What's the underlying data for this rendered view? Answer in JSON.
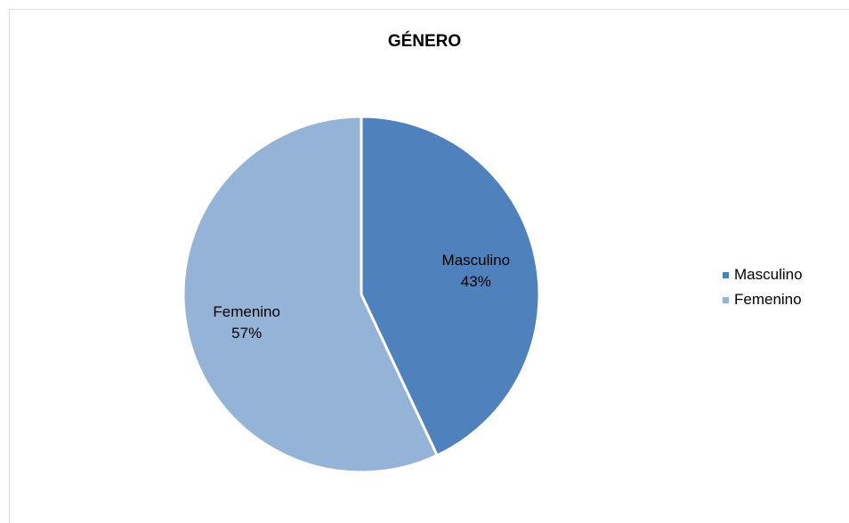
{
  "chart_data": {
    "type": "pie",
    "title": "GÉNERO",
    "categories": [
      "Masculino",
      "Femenino"
    ],
    "values": [
      43,
      57
    ],
    "value_unit": "%",
    "data_labels": [
      {
        "name": "Masculino",
        "value": "43%"
      },
      {
        "name": "Femenino",
        "value": "57%"
      }
    ],
    "colors": [
      "#4f81bd",
      "#95b3d7"
    ],
    "slice_border_color": "#ffffff",
    "legend": {
      "placement": "right",
      "entries": [
        "Masculino",
        "Femenino"
      ]
    }
  }
}
